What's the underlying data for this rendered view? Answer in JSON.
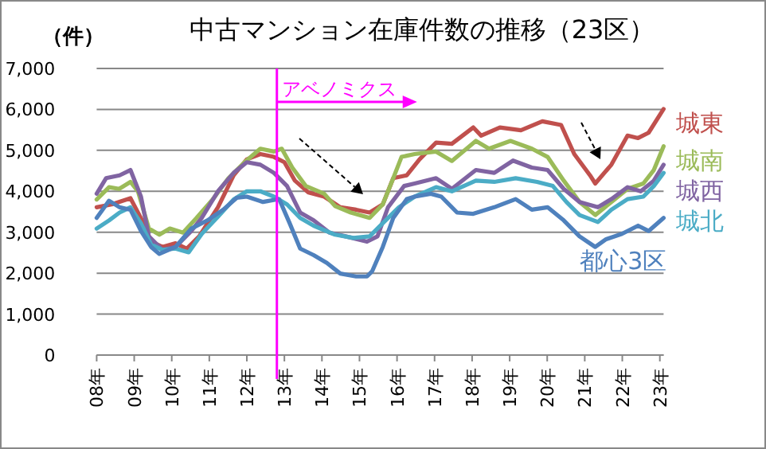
{
  "chart_data": {
    "type": "line",
    "title": "中古マンション在庫件数の推移（23区）",
    "ylabel": "（件）",
    "grid": "y",
    "legend": false,
    "xlim": [
      8,
      23.1
    ],
    "xticks": [
      {
        "value": 8,
        "label": "08年"
      },
      {
        "value": 9,
        "label": "09年"
      },
      {
        "value": 10,
        "label": "10年"
      },
      {
        "value": 11,
        "label": "11年"
      },
      {
        "value": 12,
        "label": "12年"
      },
      {
        "value": 13,
        "label": "13年"
      },
      {
        "value": 14,
        "label": "14年"
      },
      {
        "value": 15,
        "label": "15年"
      },
      {
        "value": 16,
        "label": "16年"
      },
      {
        "value": 17,
        "label": "17年"
      },
      {
        "value": 18,
        "label": "18年"
      },
      {
        "value": 19,
        "label": "19年"
      },
      {
        "value": 20,
        "label": "20年"
      },
      {
        "value": 21,
        "label": "21年"
      },
      {
        "value": 22,
        "label": "22年"
      },
      {
        "value": 23,
        "label": "23年"
      }
    ],
    "ylim": [
      0,
      7000
    ],
    "yticks": [
      0,
      {
        "value": 1000,
        "label": "1,000"
      },
      {
        "value": 2000,
        "label": "2,000"
      },
      {
        "value": 3000,
        "label": "3,000"
      },
      {
        "value": 4000,
        "label": "4,000"
      },
      {
        "value": 5000,
        "label": "5,000"
      },
      {
        "value": 6000,
        "label": "6,000"
      },
      {
        "value": 7000,
        "label": "7,000"
      }
    ],
    "ref_lines": [
      {
        "axis": "x",
        "value": 12.8,
        "label": "アベノミクス",
        "color": "#ff00ff"
      }
    ],
    "series": [
      {
        "name": "城東",
        "color": "#c0504d",
        "x": [
          8,
          8.4,
          8.9,
          9.25,
          9.45,
          9.75,
          10.1,
          10.4,
          10.73,
          11.23,
          11.65,
          12,
          12.36,
          12.72,
          13,
          13.28,
          13.64,
          14.06,
          14.49,
          14.91,
          15.27,
          15.62,
          15.9,
          16.26,
          16.6,
          17.04,
          17.46,
          18.03,
          18.24,
          18.74,
          19.3,
          19.87,
          20.37,
          20.72,
          21.14,
          21.28,
          21.71,
          22.14,
          22.42,
          22.7,
          23.1
        ],
        "values": [
          3610,
          3680,
          3830,
          3220,
          2770,
          2640,
          2730,
          2600,
          2900,
          3610,
          4390,
          4780,
          4910,
          4840,
          4710,
          4260,
          3970,
          3870,
          3610,
          3550,
          3480,
          3680,
          4320,
          4390,
          4780,
          5190,
          5160,
          5560,
          5360,
          5560,
          5490,
          5710,
          5620,
          4910,
          4390,
          4190,
          4650,
          5360,
          5300,
          5430,
          6010
        ]
      },
      {
        "name": "城南",
        "color": "#9bbb59",
        "x": [
          8,
          8.33,
          8.6,
          8.9,
          9.1,
          9.39,
          9.67,
          9.95,
          10.3,
          10.66,
          11.09,
          11.51,
          11.94,
          12.36,
          12.72,
          12.93,
          13.21,
          13.57,
          14.06,
          14.35,
          14.77,
          15.27,
          15.62,
          15.9,
          16.12,
          16.47,
          17.04,
          17.46,
          18.1,
          18.45,
          19.02,
          19.59,
          20.01,
          20.44,
          20.86,
          21.28,
          21.71,
          22.14,
          22.56,
          22.84,
          23.1
        ],
        "values": [
          3800,
          4100,
          4060,
          4230,
          4000,
          3090,
          2940,
          3090,
          2990,
          3350,
          3800,
          4320,
          4710,
          5040,
          4970,
          5040,
          4580,
          4130,
          3940,
          3640,
          3480,
          3350,
          3680,
          4320,
          4840,
          4910,
          4970,
          4740,
          5230,
          5040,
          5230,
          5040,
          4840,
          4260,
          3740,
          3420,
          3740,
          4060,
          4190,
          4520,
          5100
        ]
      },
      {
        "name": "城西",
        "color": "#8064a2",
        "x": [
          8,
          8.25,
          8.61,
          8.9,
          9.18,
          9.39,
          9.75,
          10.1,
          10.52,
          10.8,
          11.23,
          11.65,
          12,
          12.36,
          12.72,
          13.07,
          13.42,
          13.78,
          14.2,
          14.63,
          15.2,
          15.48,
          15.76,
          16.19,
          16.47,
          17.04,
          17.46,
          18.1,
          18.59,
          19.09,
          19.59,
          20.01,
          20.44,
          20.86,
          21.35,
          21.71,
          22.14,
          22.49,
          22.84,
          23.1
        ],
        "values": [
          3940,
          4320,
          4390,
          4520,
          3870,
          2900,
          2570,
          2640,
          3030,
          3350,
          4000,
          4450,
          4710,
          4650,
          4450,
          4130,
          3480,
          3290,
          2990,
          2900,
          2770,
          2900,
          3610,
          4130,
          4190,
          4320,
          4060,
          4520,
          4450,
          4750,
          4580,
          4520,
          4060,
          3740,
          3610,
          3810,
          4100,
          4000,
          4260,
          4650
        ]
      },
      {
        "name": "城北",
        "color": "#4bacc6",
        "x": [
          8,
          8.33,
          8.61,
          8.9,
          9.18,
          9.45,
          9.75,
          10.1,
          10.45,
          10.8,
          11.23,
          11.65,
          12,
          12.36,
          12.72,
          13.07,
          13.42,
          13.78,
          14.35,
          14.84,
          15.27,
          15.62,
          16.05,
          16.47,
          17.04,
          17.46,
          18.1,
          18.59,
          19.16,
          19.73,
          20.15,
          20.51,
          20.86,
          21.35,
          21.71,
          22.14,
          22.56,
          22.84,
          23.1
        ],
        "values": [
          3090,
          3290,
          3480,
          3610,
          3220,
          2700,
          2570,
          2600,
          2510,
          2960,
          3380,
          3800,
          4000,
          4000,
          3870,
          3680,
          3350,
          3160,
          2940,
          2860,
          2900,
          3220,
          3610,
          3870,
          4100,
          4000,
          4260,
          4230,
          4320,
          4230,
          4130,
          3740,
          3420,
          3250,
          3550,
          3810,
          3870,
          4130,
          4450
        ]
      },
      {
        "name": "都心3区",
        "color": "#4f81bd",
        "x": [
          8,
          8.33,
          8.61,
          8.9,
          9.18,
          9.45,
          9.67,
          10.1,
          10.52,
          10.95,
          11.37,
          11.73,
          12,
          12.43,
          12.86,
          13.14,
          13.42,
          13.78,
          14.13,
          14.49,
          14.91,
          15.2,
          15.34,
          15.62,
          15.9,
          16.26,
          16.47,
          16.9,
          17.18,
          17.6,
          18.03,
          18.59,
          19.16,
          19.59,
          20.01,
          20.44,
          20.86,
          21.28,
          21.57,
          21.99,
          22.42,
          22.7,
          23.1
        ],
        "values": [
          3350,
          3770,
          3610,
          3550,
          3030,
          2640,
          2470,
          2640,
          3090,
          3290,
          3550,
          3840,
          3870,
          3740,
          3810,
          3220,
          2600,
          2440,
          2250,
          1990,
          1920,
          1920,
          2050,
          2640,
          3350,
          3810,
          3870,
          3940,
          3870,
          3480,
          3450,
          3610,
          3810,
          3550,
          3610,
          3290,
          2900,
          2640,
          2830,
          2960,
          3160,
          3030,
          3350
        ]
      }
    ]
  }
}
